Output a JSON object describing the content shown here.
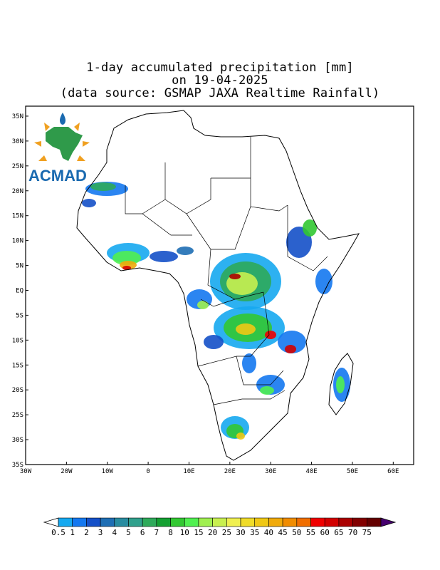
{
  "title": {
    "line1": "1-day accumulated precipitation [mm]",
    "line2": "on 19-04-2025",
    "line3": "(data source: GSMAP JAXA Realtime Rainfall)"
  },
  "logo": {
    "text": "ACMAD"
  },
  "axes": {
    "lat_labels": [
      "35N",
      "30N",
      "25N",
      "20N",
      "15N",
      "10N",
      "5N",
      "EQ",
      "5S",
      "10S",
      "15S",
      "20S",
      "25S",
      "30S",
      "35S"
    ],
    "lat_values": [
      35,
      30,
      25,
      20,
      15,
      10,
      5,
      0,
      -5,
      -10,
      -15,
      -20,
      -25,
      -30,
      -35
    ],
    "lon_labels": [
      "30W",
      "20W",
      "10W",
      "0",
      "10E",
      "20E",
      "30E",
      "40E",
      "50E",
      "60E"
    ],
    "lon_values": [
      -30,
      -20,
      -10,
      0,
      10,
      20,
      30,
      40,
      50,
      60
    ],
    "lon_range": [
      -30,
      65
    ],
    "lat_range": [
      -35,
      37
    ]
  },
  "colorbar": {
    "labels": [
      "0.5",
      "1",
      "2",
      "3",
      "4",
      "5",
      "6",
      "7",
      "8",
      "10",
      "15",
      "20",
      "25",
      "30",
      "35",
      "40",
      "45",
      "50",
      "55",
      "60",
      "65",
      "70",
      "75"
    ],
    "colors": [
      "#16a9f0",
      "#1478f0",
      "#1450c8",
      "#1e6eb4",
      "#288ca0",
      "#30a08c",
      "#2eaa5a",
      "#14a032",
      "#32c832",
      "#50f050",
      "#a0f050",
      "#c8f050",
      "#f0f050",
      "#f0dc28",
      "#f0c814",
      "#f0aa0a",
      "#f08c00",
      "#f06e00",
      "#f00000",
      "#d20000",
      "#aa0000",
      "#820000",
      "#640000",
      "#500020",
      "#46006e"
    ]
  },
  "colors": {
    "land_outline": "#000000",
    "frame": "#000000",
    "logo_green": "#2f9a4a",
    "logo_blue": "#1a6ab0",
    "logo_orange": "#f0a020"
  }
}
